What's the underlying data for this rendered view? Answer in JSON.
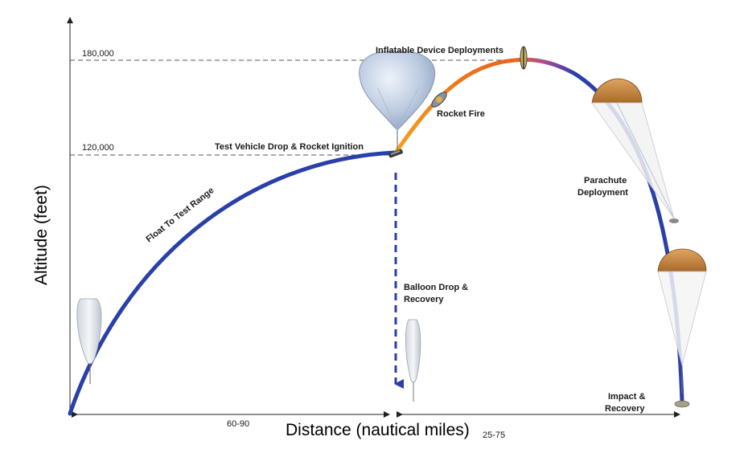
{
  "axes": {
    "y_title": "Altitude (feet)",
    "x_title": "Distance (nautical miles)"
  },
  "altitude_marks": [
    "180,000",
    "120,000"
  ],
  "distance_marks": [
    "60-90",
    "25-75"
  ],
  "labels": {
    "float": "Float To Test Range",
    "drop": "Test Vehicle Drop & Rocket Ignition",
    "rocket": "Rocket Fire",
    "inflatable": "Inflatable Device Deployments",
    "parachute_line1": "Parachute",
    "parachute_line2": "Deployment",
    "balloon_line1": "Balloon Drop &",
    "balloon_line2": "Recovery",
    "impact_line1": "Impact &",
    "impact_line2": "Recovery"
  },
  "colors": {
    "float_path": "#2a3fa8",
    "rocket_path": "#f07a1a",
    "descent_path": "#2a3fa8",
    "balloon_drop": "#2a3fa8",
    "parachute_canopy": "#c9833a"
  },
  "icons": [
    "balloon-icon",
    "large-balloon-icon",
    "vehicle-icon",
    "parachute-icon"
  ]
}
